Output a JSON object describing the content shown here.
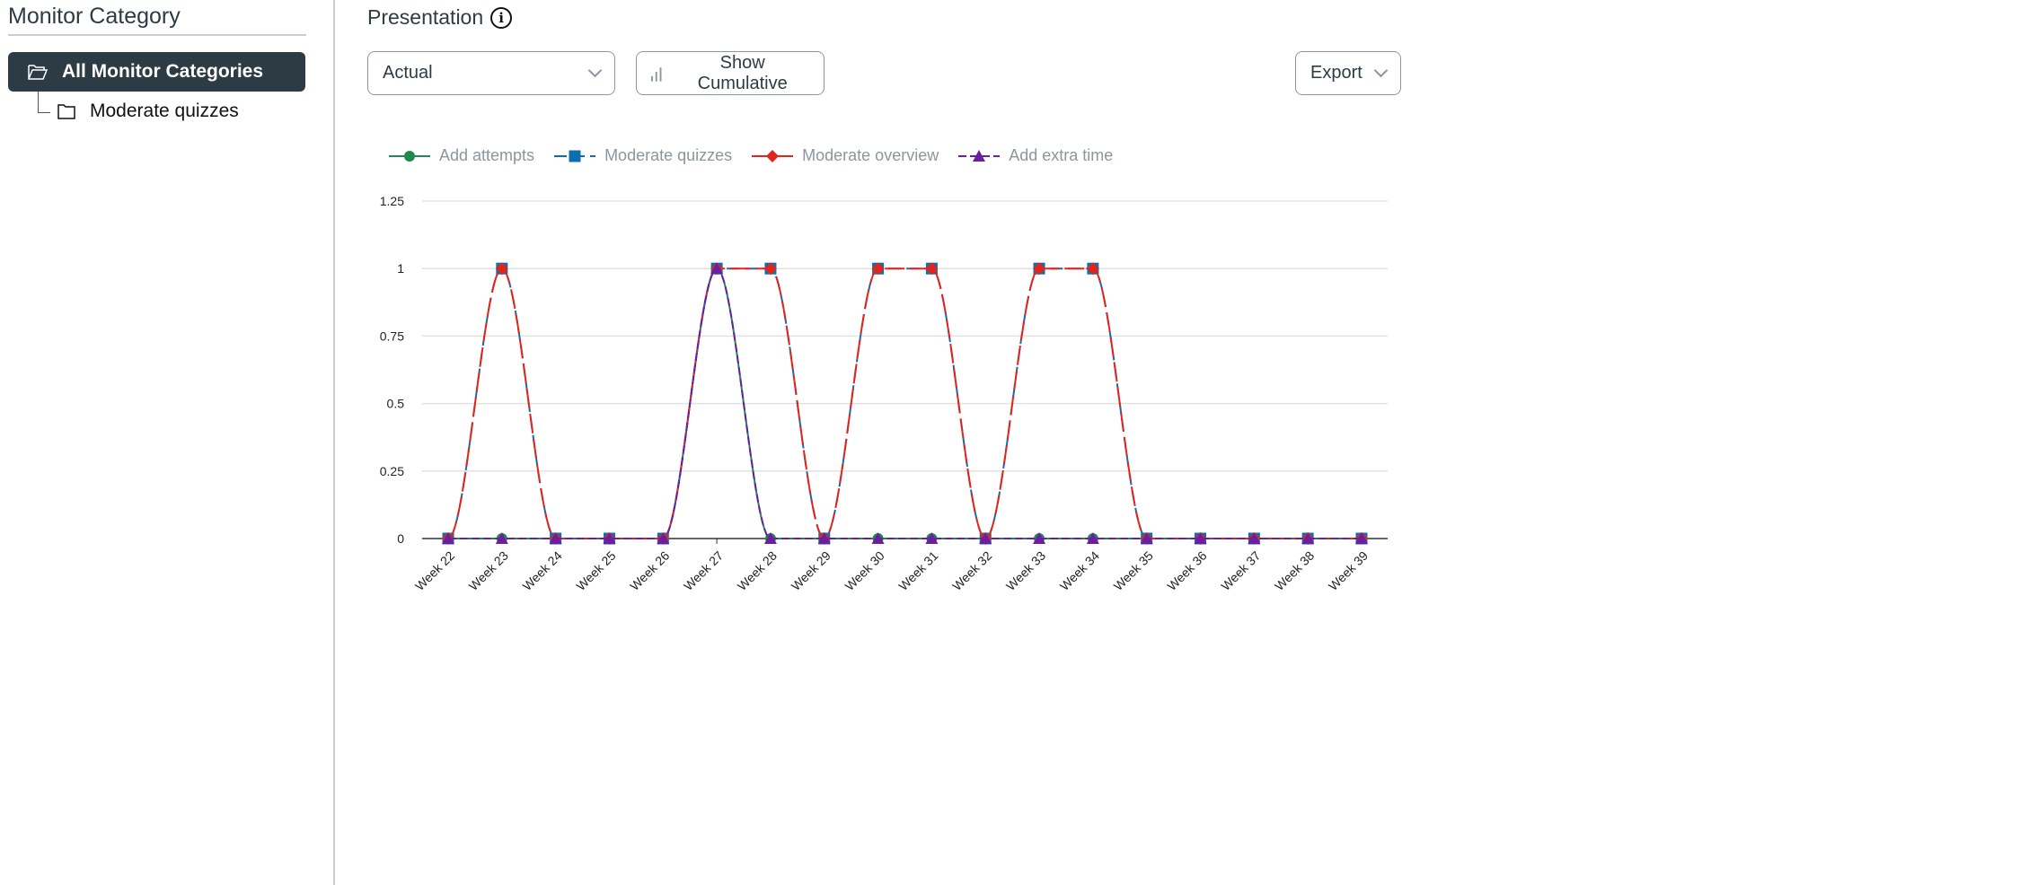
{
  "sidebar": {
    "title": "Monitor Category",
    "items": [
      {
        "label": "All Monitor Categories",
        "icon": "folder-open-icon",
        "selected": true
      },
      {
        "label": "Moderate quizzes",
        "icon": "folder-icon"
      }
    ]
  },
  "main": {
    "title": "Presentation",
    "presentation_select": "Actual",
    "cumulative_label": "Show Cumulative",
    "export_label": "Export"
  },
  "colors": {
    "add_attempts": "#1e8a50",
    "moderate_quizzes": "#0e6fb0",
    "moderate_overview": "#e0261c",
    "add_extra_time": "#6b1fa0",
    "sidebar_selected": "#2d3b45"
  },
  "chart_data": {
    "type": "line",
    "categories": [
      "Week 22",
      "Week 23",
      "Week 24",
      "Week 25",
      "Week 26",
      "Week 27",
      "Week 28",
      "Week 29",
      "Week 30",
      "Week 31",
      "Week 32",
      "Week 33",
      "Week 34",
      "Week 35",
      "Week 36",
      "Week 37",
      "Week 38",
      "Week 39"
    ],
    "yticks": [
      "0",
      "0.25",
      "0.5",
      "0.75",
      "1",
      "1.25"
    ],
    "ylim": [
      0,
      1.25
    ],
    "grid": true,
    "legend_position": "top-left",
    "series": [
      {
        "name": "Add attempts",
        "marker": "circle",
        "values": [
          0,
          0,
          0,
          0,
          0,
          1,
          0,
          0,
          0,
          0,
          0,
          0,
          0,
          0,
          0,
          0,
          0,
          0
        ]
      },
      {
        "name": "Moderate quizzes",
        "marker": "square",
        "values": [
          0,
          1,
          0,
          0,
          0,
          1,
          1,
          0,
          1,
          1,
          0,
          1,
          1,
          0,
          0,
          0,
          0,
          0
        ]
      },
      {
        "name": "Moderate overview",
        "marker": "diamond",
        "values": [
          0,
          1,
          0,
          0,
          0,
          1,
          1,
          0,
          1,
          1,
          0,
          1,
          1,
          0,
          0,
          0,
          0,
          0
        ]
      },
      {
        "name": "Add extra time",
        "marker": "triangle",
        "values": [
          0,
          0,
          0,
          0,
          0,
          1,
          0,
          0,
          0,
          0,
          0,
          0,
          0,
          0,
          0,
          0,
          0,
          0
        ]
      }
    ]
  }
}
